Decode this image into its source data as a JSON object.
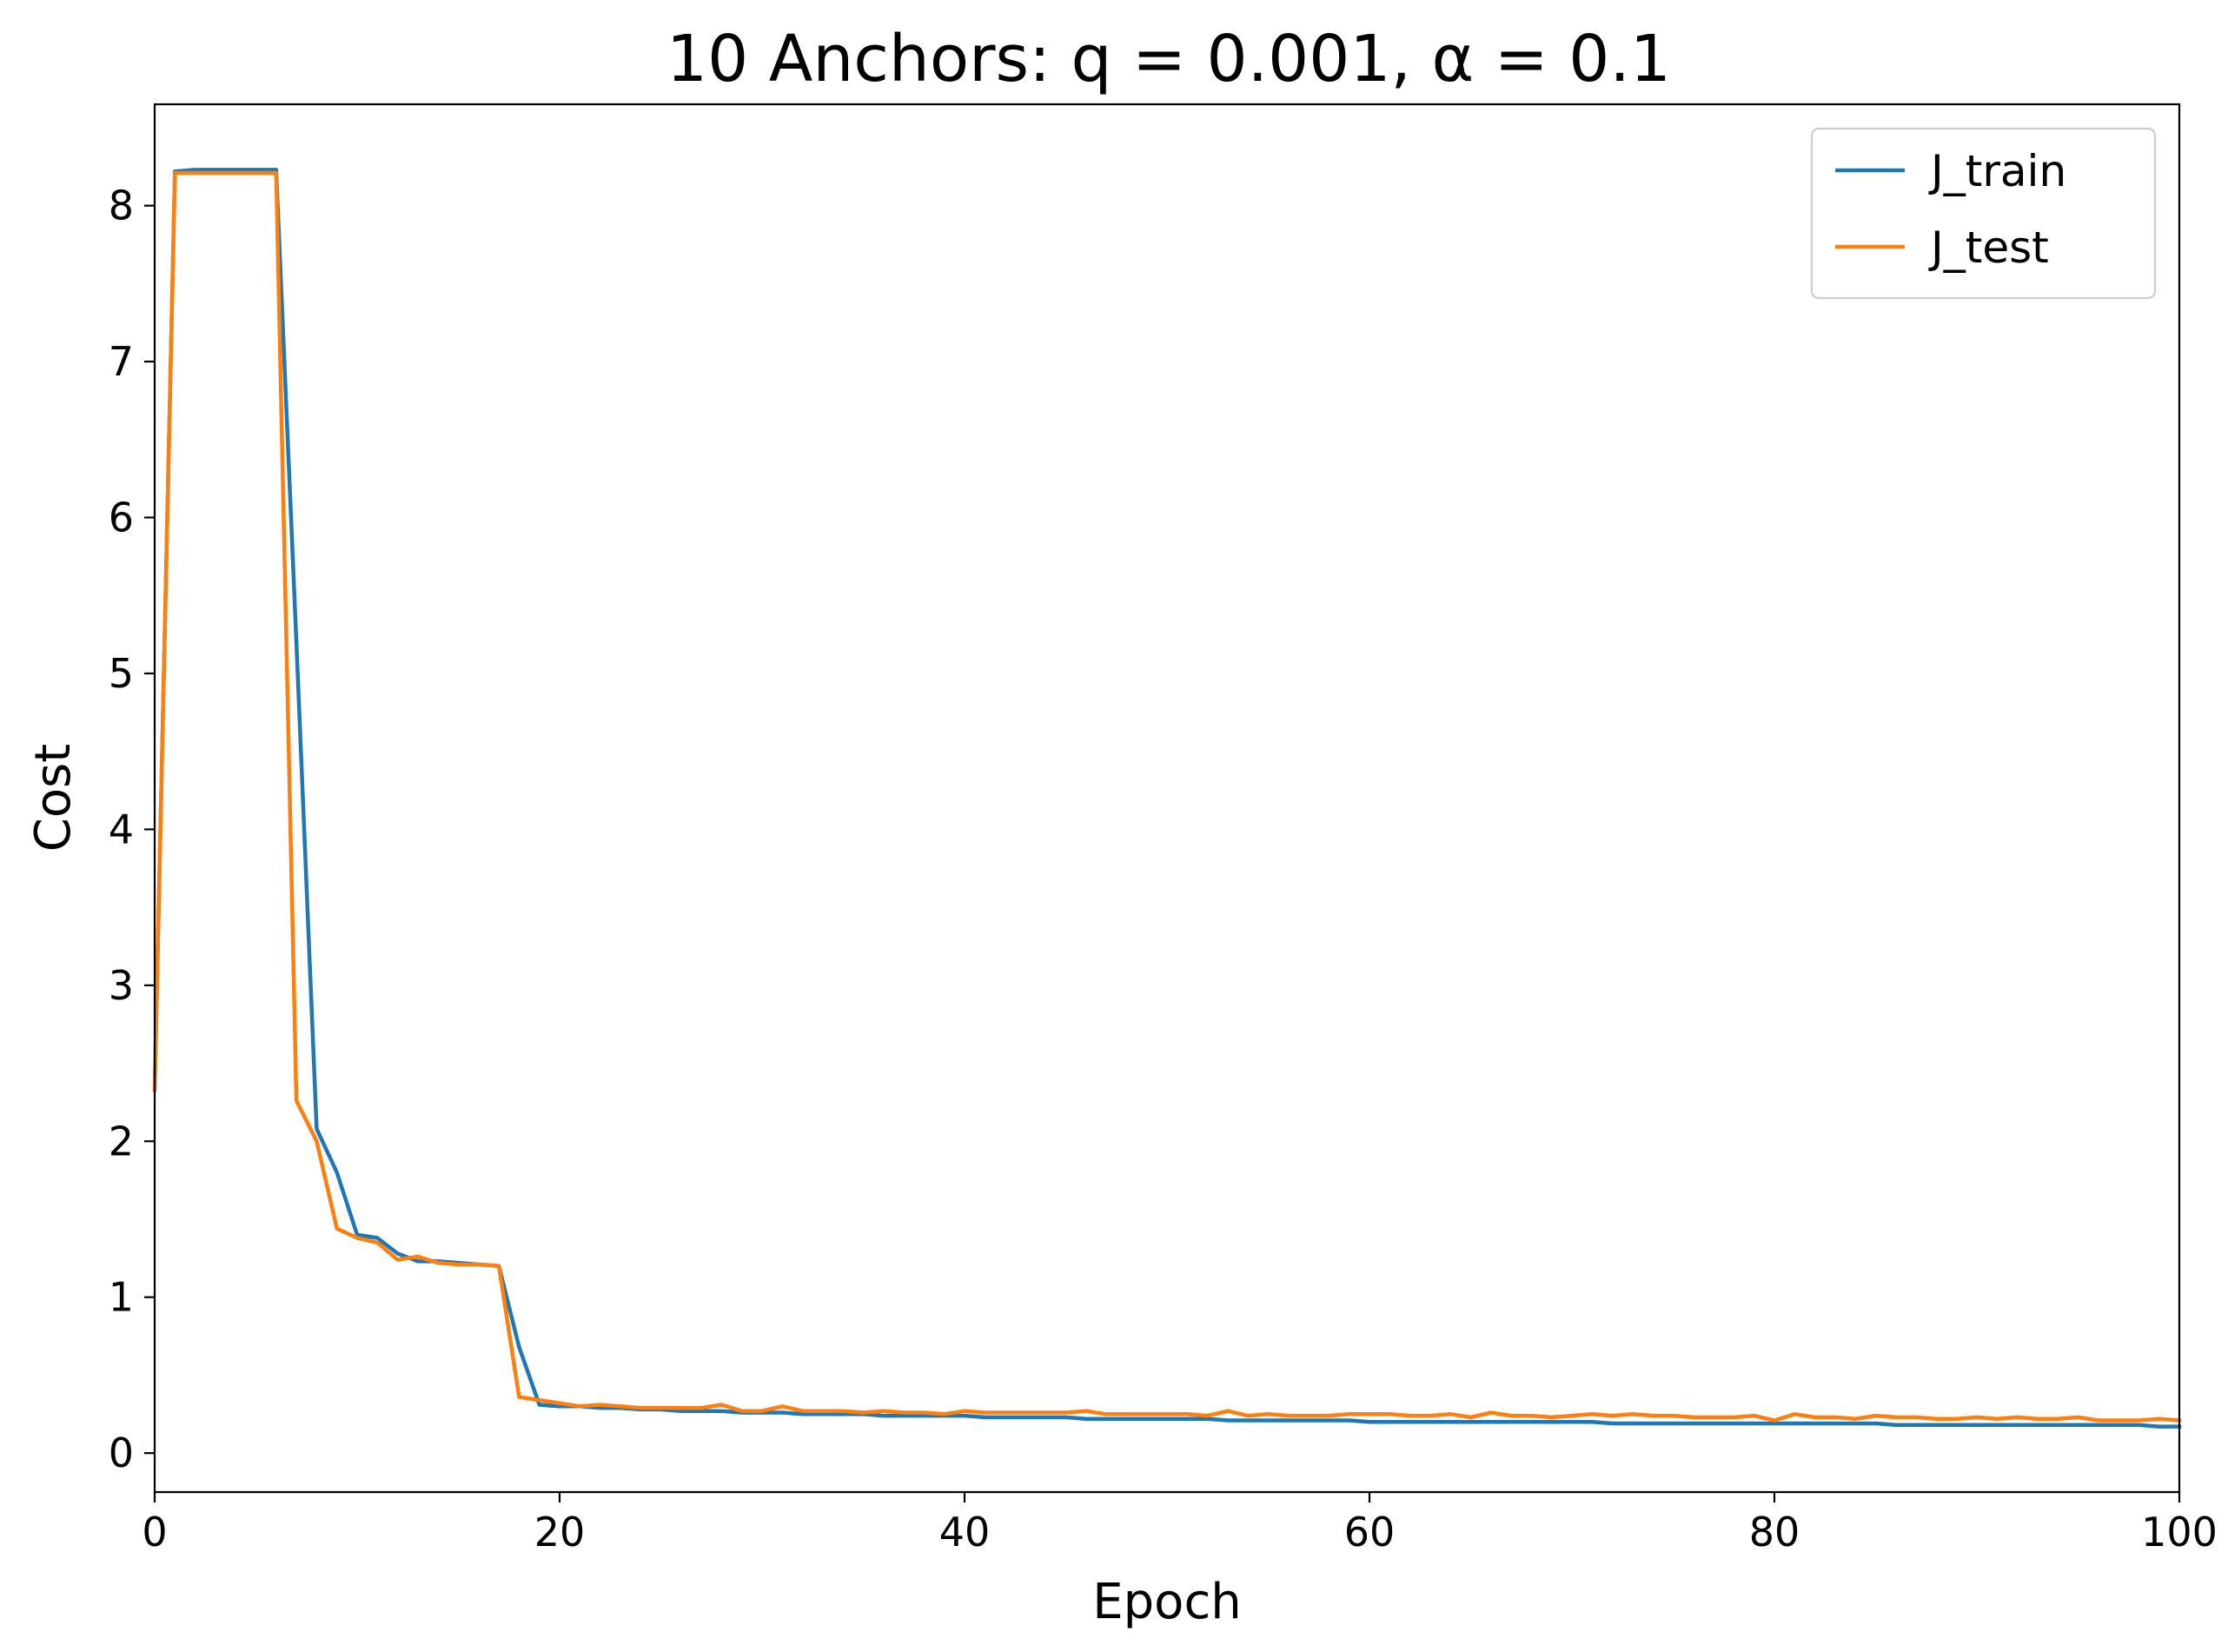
{
  "chart_data": {
    "type": "line",
    "title": "10 Anchors: q = 0.001, α = 0.1",
    "xlabel": "Epoch",
    "ylabel": "Cost",
    "xlim": [
      0,
      100
    ],
    "ylim": [
      -0.25,
      8.65
    ],
    "xticks": [
      0,
      20,
      40,
      60,
      80,
      100
    ],
    "yticks": [
      0,
      1,
      2,
      3,
      4,
      5,
      6,
      7,
      8
    ],
    "grid": false,
    "legend_position": "top-right",
    "series": [
      {
        "name": "J_train",
        "color": "#1f77b4",
        "x": [
          0,
          1,
          2,
          3,
          4,
          5,
          6,
          7,
          8,
          9,
          10,
          11,
          12,
          13,
          14,
          15,
          16,
          17,
          18,
          19,
          20,
          21,
          22,
          23,
          24,
          25,
          26,
          27,
          28,
          29,
          30,
          31,
          32,
          33,
          34,
          35,
          36,
          37,
          38,
          39,
          40,
          41,
          42,
          43,
          44,
          45,
          46,
          47,
          48,
          49,
          50,
          51,
          52,
          53,
          54,
          55,
          56,
          57,
          58,
          59,
          60,
          61,
          62,
          63,
          64,
          65,
          66,
          67,
          68,
          69,
          70,
          71,
          72,
          73,
          74,
          75,
          76,
          77,
          78,
          79,
          80,
          81,
          82,
          83,
          84,
          85,
          86,
          87,
          88,
          89,
          90,
          91,
          92,
          93,
          94,
          95,
          96,
          97,
          98,
          99,
          100
        ],
        "y": [
          2.33,
          8.22,
          8.23,
          8.23,
          8.23,
          8.23,
          8.23,
          5.2,
          2.08,
          1.8,
          1.4,
          1.38,
          1.28,
          1.23,
          1.23,
          1.22,
          1.21,
          1.2,
          0.68,
          0.31,
          0.3,
          0.3,
          0.29,
          0.29,
          0.28,
          0.28,
          0.27,
          0.27,
          0.27,
          0.26,
          0.26,
          0.26,
          0.25,
          0.25,
          0.25,
          0.25,
          0.24,
          0.24,
          0.24,
          0.24,
          0.24,
          0.23,
          0.23,
          0.23,
          0.23,
          0.23,
          0.22,
          0.22,
          0.22,
          0.22,
          0.22,
          0.22,
          0.22,
          0.21,
          0.21,
          0.21,
          0.21,
          0.21,
          0.21,
          0.21,
          0.2,
          0.2,
          0.2,
          0.2,
          0.2,
          0.2,
          0.2,
          0.2,
          0.2,
          0.2,
          0.2,
          0.2,
          0.19,
          0.19,
          0.19,
          0.19,
          0.19,
          0.19,
          0.19,
          0.19,
          0.19,
          0.19,
          0.19,
          0.19,
          0.19,
          0.19,
          0.18,
          0.18,
          0.18,
          0.18,
          0.18,
          0.18,
          0.18,
          0.18,
          0.18,
          0.18,
          0.18,
          0.18,
          0.18,
          0.17,
          0.17
        ]
      },
      {
        "name": "J_test",
        "color": "#ff7f0e",
        "x": [
          0,
          1,
          2,
          3,
          4,
          5,
          6,
          7,
          8,
          9,
          10,
          11,
          12,
          13,
          14,
          15,
          16,
          17,
          18,
          19,
          20,
          21,
          22,
          23,
          24,
          25,
          26,
          27,
          28,
          29,
          30,
          31,
          32,
          33,
          34,
          35,
          36,
          37,
          38,
          39,
          40,
          41,
          42,
          43,
          44,
          45,
          46,
          47,
          48,
          49,
          50,
          51,
          52,
          53,
          54,
          55,
          56,
          57,
          58,
          59,
          60,
          61,
          62,
          63,
          64,
          65,
          66,
          67,
          68,
          69,
          70,
          71,
          72,
          73,
          74,
          75,
          76,
          77,
          78,
          79,
          80,
          81,
          82,
          83,
          84,
          85,
          86,
          87,
          88,
          89,
          90,
          91,
          92,
          93,
          94,
          95,
          96,
          97,
          98,
          99,
          100
        ],
        "y": [
          2.33,
          8.21,
          8.21,
          8.21,
          8.21,
          8.21,
          8.21,
          2.26,
          2.0,
          1.44,
          1.38,
          1.35,
          1.24,
          1.26,
          1.22,
          1.21,
          1.21,
          1.2,
          0.36,
          0.34,
          0.32,
          0.3,
          0.31,
          0.3,
          0.29,
          0.29,
          0.29,
          0.29,
          0.31,
          0.27,
          0.27,
          0.3,
          0.27,
          0.27,
          0.27,
          0.26,
          0.27,
          0.26,
          0.26,
          0.25,
          0.27,
          0.26,
          0.26,
          0.26,
          0.26,
          0.26,
          0.27,
          0.25,
          0.25,
          0.25,
          0.25,
          0.25,
          0.24,
          0.27,
          0.24,
          0.25,
          0.24,
          0.24,
          0.24,
          0.25,
          0.25,
          0.25,
          0.24,
          0.24,
          0.25,
          0.23,
          0.26,
          0.24,
          0.24,
          0.23,
          0.24,
          0.25,
          0.24,
          0.25,
          0.24,
          0.24,
          0.23,
          0.23,
          0.23,
          0.24,
          0.21,
          0.25,
          0.23,
          0.23,
          0.22,
          0.24,
          0.23,
          0.23,
          0.22,
          0.22,
          0.23,
          0.22,
          0.23,
          0.22,
          0.22,
          0.23,
          0.21,
          0.21,
          0.21,
          0.22,
          0.21
        ]
      }
    ]
  }
}
